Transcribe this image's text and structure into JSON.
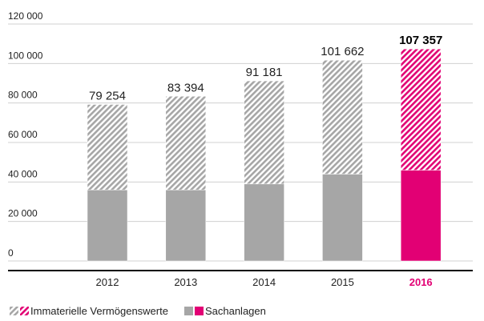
{
  "chart_data": {
    "type": "stacked_bar",
    "categories": [
      "2012",
      "2013",
      "2014",
      "2015",
      "2016"
    ],
    "series": [
      {
        "name": "Sachanlagen",
        "color": "#a6a6a6",
        "hatched": false,
        "values": [
          36000,
          36000,
          39000,
          44000,
          46000
        ]
      },
      {
        "name": "Immaterielle Vermögenswerte",
        "color": "#a6a6a6",
        "hatched": true,
        "values": [
          43254,
          47394,
          52181,
          57662,
          61357
        ]
      }
    ],
    "totals": [
      79254,
      83394,
      91181,
      101662,
      107357
    ],
    "total_labels": [
      "79 254",
      "83 394",
      "91 181",
      "101 662",
      "107 357"
    ],
    "highlight_index": 4,
    "highlight_color": "#e20074",
    "ylim": [
      0,
      120000
    ],
    "yticks": [
      0,
      {
        "value": 20000,
        "label": "20 000"
      },
      {
        "value": 40000,
        "label": "40 000"
      },
      {
        "value": 60000,
        "label": "60 000"
      },
      {
        "value": 80000,
        "label": "80 000"
      },
      {
        "value": 100000,
        "label": "100 000"
      },
      {
        "value": 120000,
        "label": "120 000"
      }
    ],
    "grid": true
  }
}
